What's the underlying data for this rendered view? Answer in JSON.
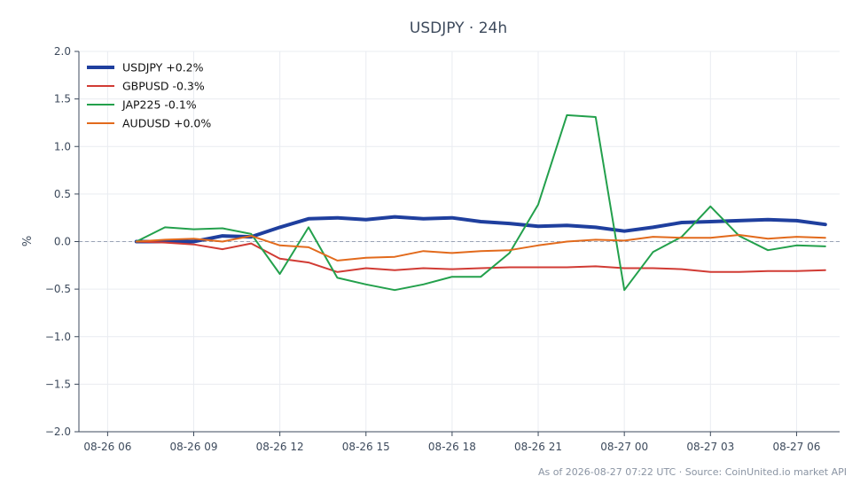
{
  "chart_data": {
    "type": "line",
    "title": "USDJPY · 24h",
    "ylabel": "%",
    "xlabel": "",
    "ylim": [
      -2.0,
      2.0
    ],
    "yticks": [
      -2.0,
      -1.5,
      -1.0,
      -0.5,
      0.0,
      0.5,
      1.0,
      1.5,
      2.0
    ],
    "ytick_labels": [
      "−2.0",
      "−1.5",
      "−1.0",
      "−0.5",
      "0.0",
      "0.5",
      "1.0",
      "1.5",
      "2.0"
    ],
    "xlim_hours": [
      -1,
      25.5
    ],
    "xtick_labels": [
      "08-26 06",
      "08-26 09",
      "08-26 12",
      "08-26 15",
      "08-26 18",
      "08-26 21",
      "08-27 00",
      "08-27 03",
      "08-27 06"
    ],
    "xtick_hours": [
      0,
      3,
      6,
      9,
      12,
      15,
      18,
      21,
      24
    ],
    "x_hours": [
      1,
      2,
      3,
      4,
      5,
      6,
      7,
      8,
      9,
      10,
      11,
      12,
      13,
      14,
      15,
      16,
      17,
      18,
      19,
      20,
      21,
      22,
      23,
      24,
      25
    ],
    "grid": true,
    "legend_position": "top-left",
    "baseline": 0.0,
    "series": [
      {
        "name": "USDJPY +0.2%",
        "color": "#1f3f9e",
        "width": 4,
        "values": [
          0.0,
          0.0,
          0.0,
          0.06,
          0.05,
          0.15,
          0.24,
          0.25,
          0.23,
          0.26,
          0.24,
          0.25,
          0.21,
          0.19,
          0.16,
          0.17,
          0.15,
          0.11,
          0.15,
          0.2,
          0.21,
          0.22,
          0.23,
          0.22,
          0.18
        ]
      },
      {
        "name": "GBPUSD -0.3%",
        "color": "#d13b34",
        "width": 2,
        "values": [
          0.0,
          -0.01,
          -0.03,
          -0.08,
          -0.02,
          -0.18,
          -0.22,
          -0.32,
          -0.28,
          -0.3,
          -0.28,
          -0.29,
          -0.28,
          -0.27,
          -0.27,
          -0.27,
          -0.26,
          -0.28,
          -0.28,
          -0.29,
          -0.32,
          -0.32,
          -0.31,
          -0.31,
          -0.3
        ]
      },
      {
        "name": "JAP225 -0.1%",
        "color": "#23a04c",
        "width": 2,
        "values": [
          0.0,
          0.15,
          0.13,
          0.14,
          0.08,
          -0.34,
          0.15,
          -0.38,
          -0.45,
          -0.51,
          -0.45,
          -0.37,
          -0.37,
          -0.12,
          0.39,
          1.33,
          1.31,
          -0.51,
          -0.11,
          0.05,
          0.37,
          0.06,
          -0.09,
          -0.04,
          -0.05
        ]
      },
      {
        "name": "AUDUSD +0.0%",
        "color": "#e26a1c",
        "width": 2,
        "values": [
          0.0,
          0.02,
          0.03,
          0.0,
          0.06,
          -0.04,
          -0.06,
          -0.2,
          -0.17,
          -0.16,
          -0.1,
          -0.12,
          -0.1,
          -0.09,
          -0.04,
          0.0,
          0.02,
          0.01,
          0.05,
          0.04,
          0.04,
          0.07,
          0.03,
          0.05,
          0.04
        ]
      }
    ]
  },
  "footer": "As of 2026-08-27 07:22 UTC · Source: CoinUnited.io market API"
}
